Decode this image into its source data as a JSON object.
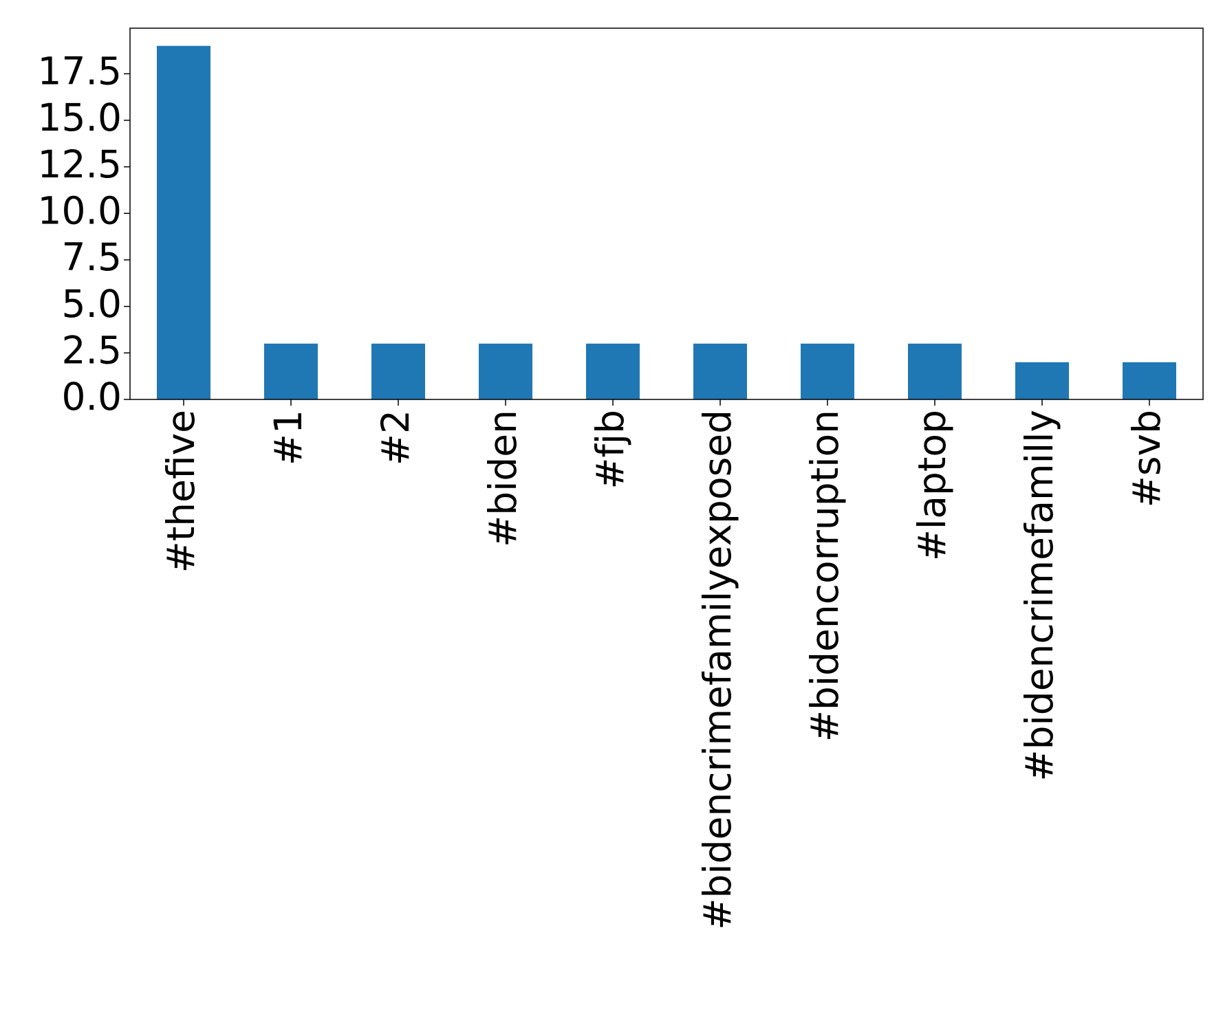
{
  "chart_data": {
    "type": "bar",
    "categories": [
      "#thefive",
      "#1",
      "#2",
      "#biden",
      "#fjb",
      "#bidencrimefamilyexposed",
      "#bidencorruption",
      "#laptop",
      "#bidencrimefamilly",
      "#svb"
    ],
    "values": [
      19,
      3,
      3,
      3,
      3,
      3,
      3,
      3,
      2,
      2
    ],
    "color": "#1f77b4",
    "ylim": [
      0,
      19.95
    ],
    "yticks": [
      {
        "value": 0,
        "label": "0.0"
      },
      {
        "value": 2.5,
        "label": "2.5"
      },
      {
        "value": 5,
        "label": "5.0"
      },
      {
        "value": 7.5,
        "label": "7.5"
      },
      {
        "value": 10,
        "label": "10.0"
      },
      {
        "value": 12.5,
        "label": "12.5"
      },
      {
        "value": 15,
        "label": "15.0"
      },
      {
        "value": 17.5,
        "label": "17.5"
      }
    ],
    "grid": false
  }
}
